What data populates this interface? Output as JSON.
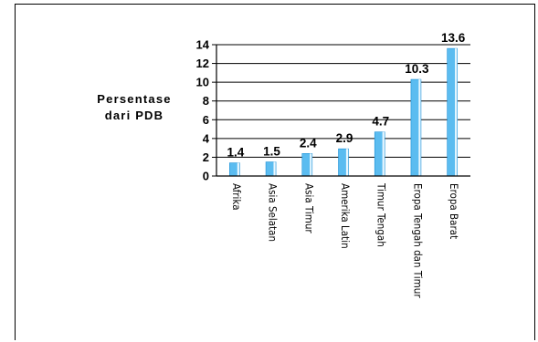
{
  "chart_data": {
    "type": "bar",
    "ylabel_lines": [
      "Persentase",
      "dari PDB"
    ],
    "ylim": [
      0,
      14
    ],
    "yticks": [
      0,
      2,
      4,
      6,
      8,
      10,
      12,
      14
    ],
    "grid": true,
    "categories": [
      "Afrika",
      "Asia Selatan",
      "Asia Timur",
      "Amerika Latin",
      "Timur Tengah",
      "Eropa Tengah dan Timur",
      "Eropa Barat"
    ],
    "values": [
      1.4,
      1.5,
      2.4,
      2.9,
      4.7,
      10.3,
      13.6
    ],
    "data_labels": [
      "1.4",
      "1.5",
      "2.4",
      "2.9",
      "4.7",
      "10.3",
      "13.6"
    ],
    "bar_color": "#5bbcf0",
    "bar_edge_color": "#1a8fd6"
  }
}
